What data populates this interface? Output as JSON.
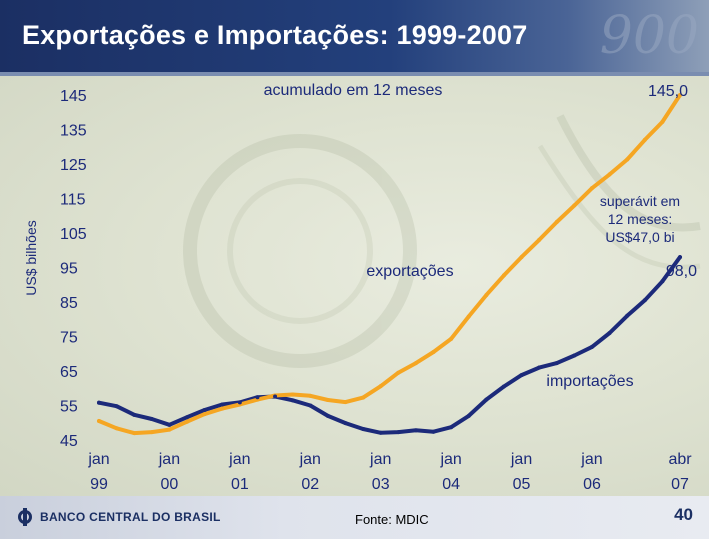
{
  "title": "Exportações e Importações: 1999-2007",
  "watermark": "900",
  "chart_data": {
    "type": "line",
    "subtitle": "acumulado em 12 meses",
    "ylabel": "US$ bilhões",
    "ylim": [
      45,
      145
    ],
    "yticks": [
      "145",
      "135",
      "125",
      "115",
      "105",
      "95",
      "85",
      "75",
      "65",
      "55",
      "45"
    ],
    "x_tick_labels": [
      [
        "jan",
        "99"
      ],
      [
        "jan",
        "00"
      ],
      [
        "jan",
        "01"
      ],
      [
        "jan",
        "02"
      ],
      [
        "jan",
        "03"
      ],
      [
        "jan",
        "04"
      ],
      [
        "jan",
        "05"
      ],
      [
        "jan",
        "06"
      ],
      [
        "abr",
        "07"
      ]
    ],
    "x_tick_dates": [
      "1999-01",
      "2000-01",
      "2001-01",
      "2002-01",
      "2003-01",
      "2004-01",
      "2005-01",
      "2006-01",
      "2007-04"
    ],
    "grid": false,
    "colors": {
      "exportacoes": "#f5a623",
      "importacoes": "#1c2a7a"
    },
    "series": [
      {
        "name": "exportações",
        "x": [
          "1999-01",
          "1999-04",
          "1999-07",
          "1999-10",
          "2000-01",
          "2000-04",
          "2000-07",
          "2000-10",
          "2001-01",
          "2001-04",
          "2001-07",
          "2001-10",
          "2002-01",
          "2002-04",
          "2002-07",
          "2002-10",
          "2003-01",
          "2003-04",
          "2003-07",
          "2003-10",
          "2004-01",
          "2004-04",
          "2004-07",
          "2004-10",
          "2005-01",
          "2005-04",
          "2005-07",
          "2005-10",
          "2006-01",
          "2006-04",
          "2006-07",
          "2006-10",
          "2007-01",
          "2007-04"
        ],
        "values": [
          50.5,
          48.4,
          47.0,
          47.3,
          48.0,
          50.3,
          52.5,
          54.1,
          55.3,
          56.7,
          57.9,
          58.2,
          57.8,
          56.6,
          56.0,
          57.3,
          60.6,
          64.5,
          67.3,
          70.5,
          74.3,
          80.8,
          87.0,
          92.7,
          98.0,
          103.0,
          108.2,
          113.0,
          118.0,
          122.0,
          126.3,
          132.0,
          137.2,
          145.0
        ]
      },
      {
        "name": "importações",
        "x": [
          "1999-01",
          "1999-04",
          "1999-07",
          "1999-10",
          "2000-01",
          "2000-04",
          "2000-07",
          "2000-10",
          "2001-01",
          "2001-04",
          "2001-07",
          "2001-10",
          "2002-01",
          "2002-04",
          "2002-07",
          "2002-10",
          "2003-01",
          "2003-04",
          "2003-07",
          "2003-10",
          "2004-01",
          "2004-04",
          "2004-07",
          "2004-10",
          "2005-01",
          "2005-04",
          "2005-07",
          "2005-10",
          "2006-01",
          "2006-04",
          "2006-07",
          "2006-10",
          "2007-01",
          "2007-04"
        ],
        "values": [
          55.8,
          54.8,
          52.3,
          51.1,
          49.4,
          51.6,
          53.7,
          55.3,
          55.9,
          57.4,
          57.6,
          56.5,
          55.0,
          52.0,
          49.9,
          48.2,
          47.1,
          47.3,
          47.8,
          47.4,
          48.7,
          52.0,
          56.7,
          60.5,
          63.8,
          66.0,
          67.3,
          69.5,
          72.0,
          76.0,
          81.0,
          85.5,
          91.0,
          98.0
        ]
      }
    ],
    "annotations": {
      "subtitle": "acumulado em 12 meses",
      "export_label": "exportações",
      "import_label": "importações",
      "export_end": "145,0",
      "import_end": "98,0",
      "surplus": [
        "superávit em",
        "12 meses:",
        "US$47,0 bi"
      ]
    }
  },
  "footer": {
    "logo_text": "BANCO CENTRAL DO BRASIL",
    "source": "Fonte: MDIC",
    "page_number": "40"
  }
}
